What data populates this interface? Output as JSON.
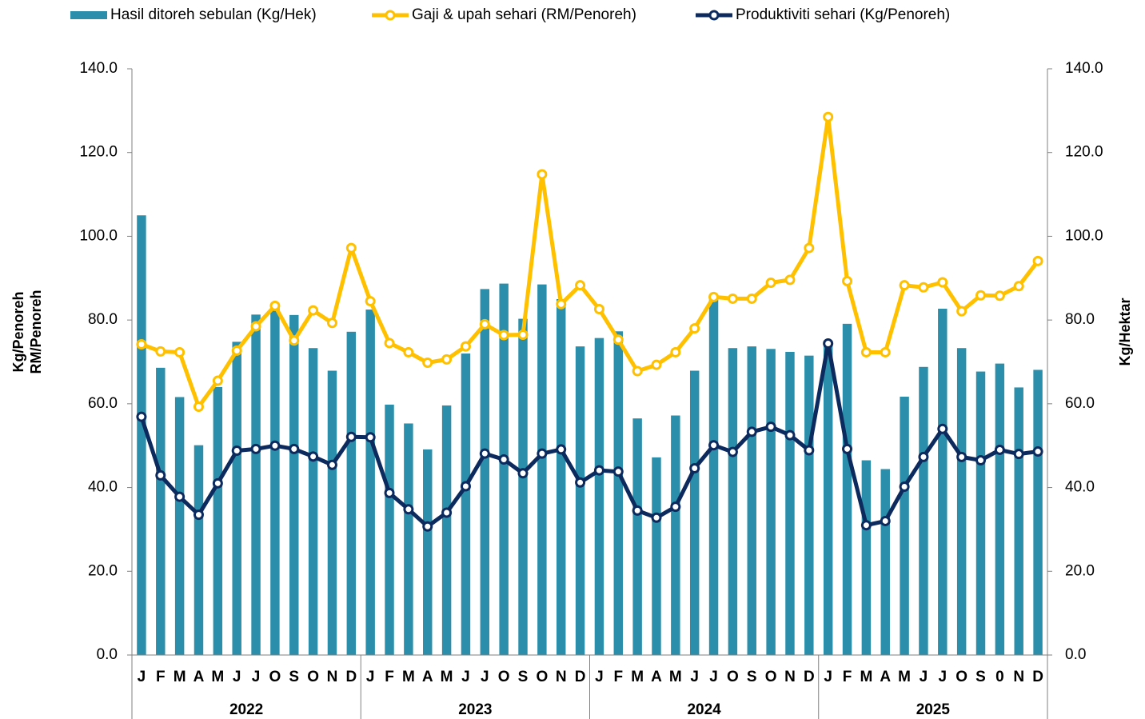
{
  "chart_data": {
    "type": "bar_line",
    "categories": [
      "J",
      "F",
      "M",
      "A",
      "M",
      "J",
      "J",
      "O",
      "S",
      "O",
      "N",
      "D",
      "J",
      "F",
      "M",
      "A",
      "M",
      "J",
      "J",
      "O",
      "S",
      "O",
      "N",
      "D",
      "J",
      "F",
      "M",
      "A",
      "M",
      "J",
      "J",
      "O",
      "S",
      "O",
      "N",
      "D",
      "J",
      "F",
      "M",
      "A",
      "M",
      "J",
      "J",
      "O",
      "S",
      "0",
      "N",
      "D"
    ],
    "x_groups": [
      "2022",
      "2023",
      "2024",
      "2025"
    ],
    "ylabel": [
      "Kg/Penoreh",
      "RM/Penoreh"
    ],
    "y2label": "Kg/Hektar",
    "ylim": [
      0,
      140
    ],
    "yticks": [
      {
        "value": 0,
        "label": "0.0"
      },
      {
        "value": 20,
        "label": "20.0"
      },
      {
        "value": 40,
        "label": "40.0"
      },
      {
        "value": 60,
        "label": "60.0"
      },
      {
        "value": 80,
        "label": "80.0"
      },
      {
        "value": 100,
        "label": "100.0"
      },
      {
        "value": 120,
        "label": "120.0"
      },
      {
        "value": 140,
        "label": "140.0"
      }
    ],
    "y2lim": [
      0,
      140
    ],
    "y2ticks": [
      {
        "value": 0,
        "label": "0.0"
      },
      {
        "value": 20,
        "label": "20.0"
      },
      {
        "value": 40,
        "label": "40.0"
      },
      {
        "value": 60,
        "label": "60.0"
      },
      {
        "value": 80,
        "label": "80.0"
      },
      {
        "value": 100,
        "label": "100.0"
      },
      {
        "value": 120,
        "label": "120.0"
      },
      {
        "value": 140,
        "label": "140.0"
      }
    ],
    "legend": "top",
    "series": [
      {
        "name": "Hasil ditoreh sebulan (Kg/Hek)",
        "type": "bar",
        "axis": "y2",
        "color": "#2b8fab",
        "values": [
          105,
          68.6,
          61.6,
          50.1,
          64,
          74.8,
          81.3,
          83,
          81.2,
          73.3,
          67.9,
          77.2,
          82.5,
          59.8,
          55.3,
          49.1,
          59.6,
          72,
          87.4,
          88.7,
          80.3,
          88.5,
          85,
          73.7,
          75.7,
          77.3,
          56.5,
          47.2,
          57.2,
          67.9,
          85.5,
          73.3,
          73.7,
          73.1,
          72.4,
          71.5,
          74,
          79.1,
          46.5,
          44.4,
          61.7,
          68.8,
          82.7,
          73.3,
          67.7,
          69.6,
          63.9,
          68.1
        ]
      },
      {
        "name": "Gaji & upah sehari (RM/Penoreh)",
        "type": "line",
        "color": "#ffc000",
        "values": [
          74.2,
          72.5,
          72.3,
          59.3,
          65.5,
          72.7,
          78.5,
          83.4,
          75.1,
          82.3,
          79.3,
          97.2,
          84.5,
          74.5,
          72.3,
          69.8,
          70.6,
          73.7,
          79,
          76.4,
          76.5,
          114.8,
          83.8,
          88.3,
          82.6,
          75.3,
          67.8,
          69.3,
          72.3,
          78,
          85.5,
          85.1,
          85.1,
          88.9,
          89.6,
          97.2,
          128.5,
          89.3,
          72.3,
          72.3,
          88.3,
          87.8,
          89,
          82.1,
          85.9,
          85.8,
          88.1,
          94.1
        ]
      },
      {
        "name": "Produktiviti sehari (Kg/Penoreh)",
        "type": "line",
        "color": "#0d2a5e",
        "values": [
          56.9,
          42.9,
          37.8,
          33.5,
          41,
          48.8,
          49.2,
          50,
          49.2,
          47.4,
          45.4,
          52.1,
          52,
          38.7,
          34.8,
          30.7,
          34,
          40.3,
          48.1,
          46.7,
          43.4,
          48.1,
          49.1,
          41.2,
          44.1,
          43.8,
          34.5,
          32.8,
          35.4,
          44.6,
          50.1,
          48.5,
          53.3,
          54.5,
          52.5,
          48.9,
          74.4,
          49.2,
          31,
          32,
          40.2,
          47.3,
          54,
          47.3,
          46.5,
          49,
          48,
          48.6
        ]
      }
    ]
  }
}
